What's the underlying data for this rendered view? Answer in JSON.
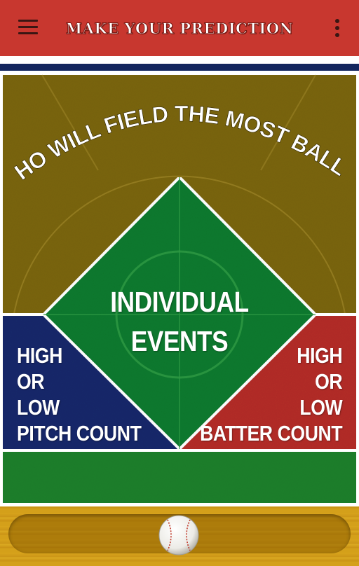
{
  "header": {
    "title": "MAKE YOUR PREDICTION",
    "menu_icon": "hamburger-menu-icon",
    "overflow_icon": "more-vert-icon",
    "bar_color": "#c8372f",
    "stripe_color": "#13265e"
  },
  "field": {
    "question": "WHO WILL FIELD THE MOST BALLS?",
    "center_option": {
      "lines": [
        "INDIVIDUAL",
        "EVENTS"
      ],
      "color": "#117a2e"
    },
    "left_option": {
      "lines": [
        "HIGH",
        "OR",
        "LOW",
        "PITCH COUNT"
      ],
      "color": "#13296a"
    },
    "right_option": {
      "lines": [
        "HIGH",
        "OR",
        "LOW",
        "BATTER COUNT"
      ],
      "color": "#b32d26"
    },
    "dirt_color": "#7a6510",
    "grass_color": "#1b7f2c"
  },
  "bottom": {
    "slider_icon": "baseball-icon",
    "wood_color": "#d4a01a"
  }
}
